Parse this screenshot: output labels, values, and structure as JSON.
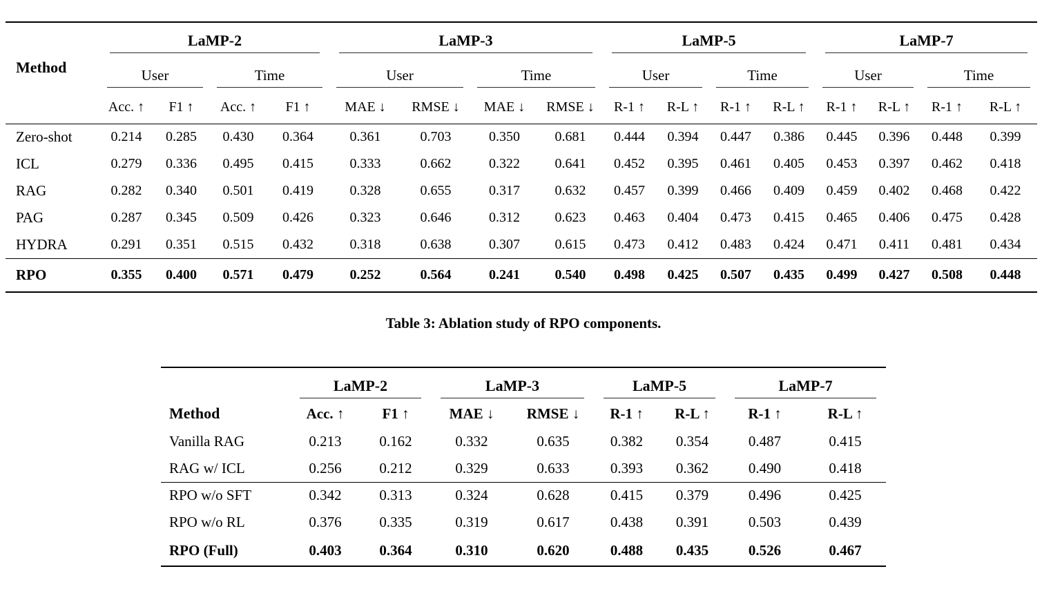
{
  "caption": "Table 3: Ablation study of RPO components.",
  "table1": {
    "method_header": "Method",
    "groups": [
      {
        "label": "LaMP-2",
        "subgroups": [
          {
            "label": "User",
            "metrics": [
              "Acc. ↑",
              "F1 ↑"
            ]
          },
          {
            "label": "Time",
            "metrics": [
              "Acc. ↑",
              "F1 ↑"
            ]
          }
        ]
      },
      {
        "label": "LaMP-3",
        "subgroups": [
          {
            "label": "User",
            "metrics": [
              "MAE ↓",
              "RMSE ↓"
            ]
          },
          {
            "label": "Time",
            "metrics": [
              "MAE ↓",
              "RMSE ↓"
            ]
          }
        ]
      },
      {
        "label": "LaMP-5",
        "subgroups": [
          {
            "label": "User",
            "metrics": [
              "R-1 ↑",
              "R-L ↑"
            ]
          },
          {
            "label": "Time",
            "metrics": [
              "R-1 ↑",
              "R-L ↑"
            ]
          }
        ]
      },
      {
        "label": "LaMP-7",
        "subgroups": [
          {
            "label": "User",
            "metrics": [
              "R-1 ↑",
              "R-L ↑"
            ]
          },
          {
            "label": "Time",
            "metrics": [
              "R-1 ↑",
              "R-L ↑"
            ]
          }
        ]
      }
    ],
    "rows": [
      {
        "method": "Zero-shot",
        "bold": false,
        "rule_above": false,
        "values": [
          "0.214",
          "0.285",
          "0.430",
          "0.364",
          "0.361",
          "0.703",
          "0.350",
          "0.681",
          "0.444",
          "0.394",
          "0.447",
          "0.386",
          "0.445",
          "0.396",
          "0.448",
          "0.399"
        ]
      },
      {
        "method": "ICL",
        "bold": false,
        "rule_above": false,
        "values": [
          "0.279",
          "0.336",
          "0.495",
          "0.415",
          "0.333",
          "0.662",
          "0.322",
          "0.641",
          "0.452",
          "0.395",
          "0.461",
          "0.405",
          "0.453",
          "0.397",
          "0.462",
          "0.418"
        ]
      },
      {
        "method": "RAG",
        "bold": false,
        "rule_above": false,
        "values": [
          "0.282",
          "0.340",
          "0.501",
          "0.419",
          "0.328",
          "0.655",
          "0.317",
          "0.632",
          "0.457",
          "0.399",
          "0.466",
          "0.409",
          "0.459",
          "0.402",
          "0.468",
          "0.422"
        ]
      },
      {
        "method": "PAG",
        "bold": false,
        "rule_above": false,
        "values": [
          "0.287",
          "0.345",
          "0.509",
          "0.426",
          "0.323",
          "0.646",
          "0.312",
          "0.623",
          "0.463",
          "0.404",
          "0.473",
          "0.415",
          "0.465",
          "0.406",
          "0.475",
          "0.428"
        ]
      },
      {
        "method": "HYDRA",
        "bold": false,
        "rule_above": false,
        "values": [
          "0.291",
          "0.351",
          "0.515",
          "0.432",
          "0.318",
          "0.638",
          "0.307",
          "0.615",
          "0.473",
          "0.412",
          "0.483",
          "0.424",
          "0.471",
          "0.411",
          "0.481",
          "0.434"
        ]
      },
      {
        "method": "RPO",
        "bold": true,
        "rule_above": true,
        "values": [
          "0.355",
          "0.400",
          "0.571",
          "0.479",
          "0.252",
          "0.564",
          "0.241",
          "0.540",
          "0.498",
          "0.425",
          "0.507",
          "0.435",
          "0.499",
          "0.427",
          "0.508",
          "0.448"
        ]
      }
    ]
  },
  "table2": {
    "method_header": "Method",
    "groups": [
      "LaMP-2",
      "LaMP-3",
      "LaMP-5",
      "LaMP-7"
    ],
    "headers": [
      "Acc. ↑",
      "F1 ↑",
      "MAE ↓",
      "RMSE ↓",
      "R-1 ↑",
      "R-L ↑",
      "R-1 ↑",
      "R-L ↑"
    ],
    "rows": [
      {
        "method": "Vanilla RAG",
        "bold": false,
        "rule_above": false,
        "values": [
          "0.213",
          "0.162",
          "0.332",
          "0.635",
          "0.382",
          "0.354",
          "0.487",
          "0.415"
        ]
      },
      {
        "method": "RAG w/ ICL",
        "bold": false,
        "rule_above": false,
        "values": [
          "0.256",
          "0.212",
          "0.329",
          "0.633",
          "0.393",
          "0.362",
          "0.490",
          "0.418"
        ]
      },
      {
        "method": "RPO w/o SFT",
        "bold": false,
        "rule_above": true,
        "values": [
          "0.342",
          "0.313",
          "0.324",
          "0.628",
          "0.415",
          "0.379",
          "0.496",
          "0.425"
        ]
      },
      {
        "method": "RPO w/o RL",
        "bold": false,
        "rule_above": false,
        "values": [
          "0.376",
          "0.335",
          "0.319",
          "0.617",
          "0.438",
          "0.391",
          "0.503",
          "0.439"
        ]
      },
      {
        "method": "RPO (Full)",
        "bold": true,
        "rule_above": false,
        "values": [
          "0.403",
          "0.364",
          "0.310",
          "0.620",
          "0.488",
          "0.435",
          "0.526",
          "0.467"
        ]
      }
    ]
  }
}
